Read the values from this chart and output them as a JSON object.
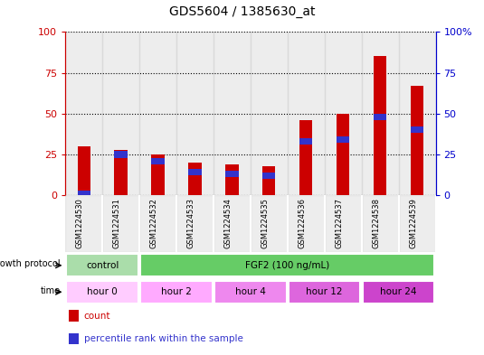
{
  "title": "GDS5604 / 1385630_at",
  "samples": [
    "GSM1224530",
    "GSM1224531",
    "GSM1224532",
    "GSM1224533",
    "GSM1224534",
    "GSM1224535",
    "GSM1224536",
    "GSM1224537",
    "GSM1224538",
    "GSM1224539"
  ],
  "count_values": [
    30,
    28,
    25,
    20,
    19,
    18,
    46,
    50,
    85,
    67
  ],
  "percentile_values": [
    1,
    25,
    21,
    14,
    13,
    12,
    33,
    34,
    48,
    40
  ],
  "bar_color_red": "#cc0000",
  "bar_color_blue": "#3333cc",
  "ylim": [
    0,
    100
  ],
  "yticks": [
    0,
    25,
    50,
    75,
    100
  ],
  "protocol_groups": [
    {
      "label": "control",
      "start": 0,
      "end": 2,
      "color": "#aaddaa"
    },
    {
      "label": "FGF2 (100 ng/mL)",
      "start": 2,
      "end": 10,
      "color": "#66cc66"
    }
  ],
  "time_groups": [
    {
      "label": "hour 0",
      "start": 0,
      "end": 2,
      "color": "#ffccff"
    },
    {
      "label": "hour 2",
      "start": 2,
      "end": 4,
      "color": "#ffaaff"
    },
    {
      "label": "hour 4",
      "start": 4,
      "end": 6,
      "color": "#ee88ee"
    },
    {
      "label": "hour 12",
      "start": 6,
      "end": 8,
      "color": "#dd66dd"
    },
    {
      "label": "hour 24",
      "start": 8,
      "end": 10,
      "color": "#cc44cc"
    }
  ],
  "legend_items": [
    {
      "label": "count",
      "color": "#cc0000"
    },
    {
      "label": "percentile rank within the sample",
      "color": "#3333cc"
    }
  ],
  "left_axis_color": "#cc0000",
  "right_axis_color": "#0000cc",
  "col_bg_color": "#cccccc",
  "bar_width": 0.35,
  "blue_bar_width": 0.35,
  "blue_bar_height": 4
}
